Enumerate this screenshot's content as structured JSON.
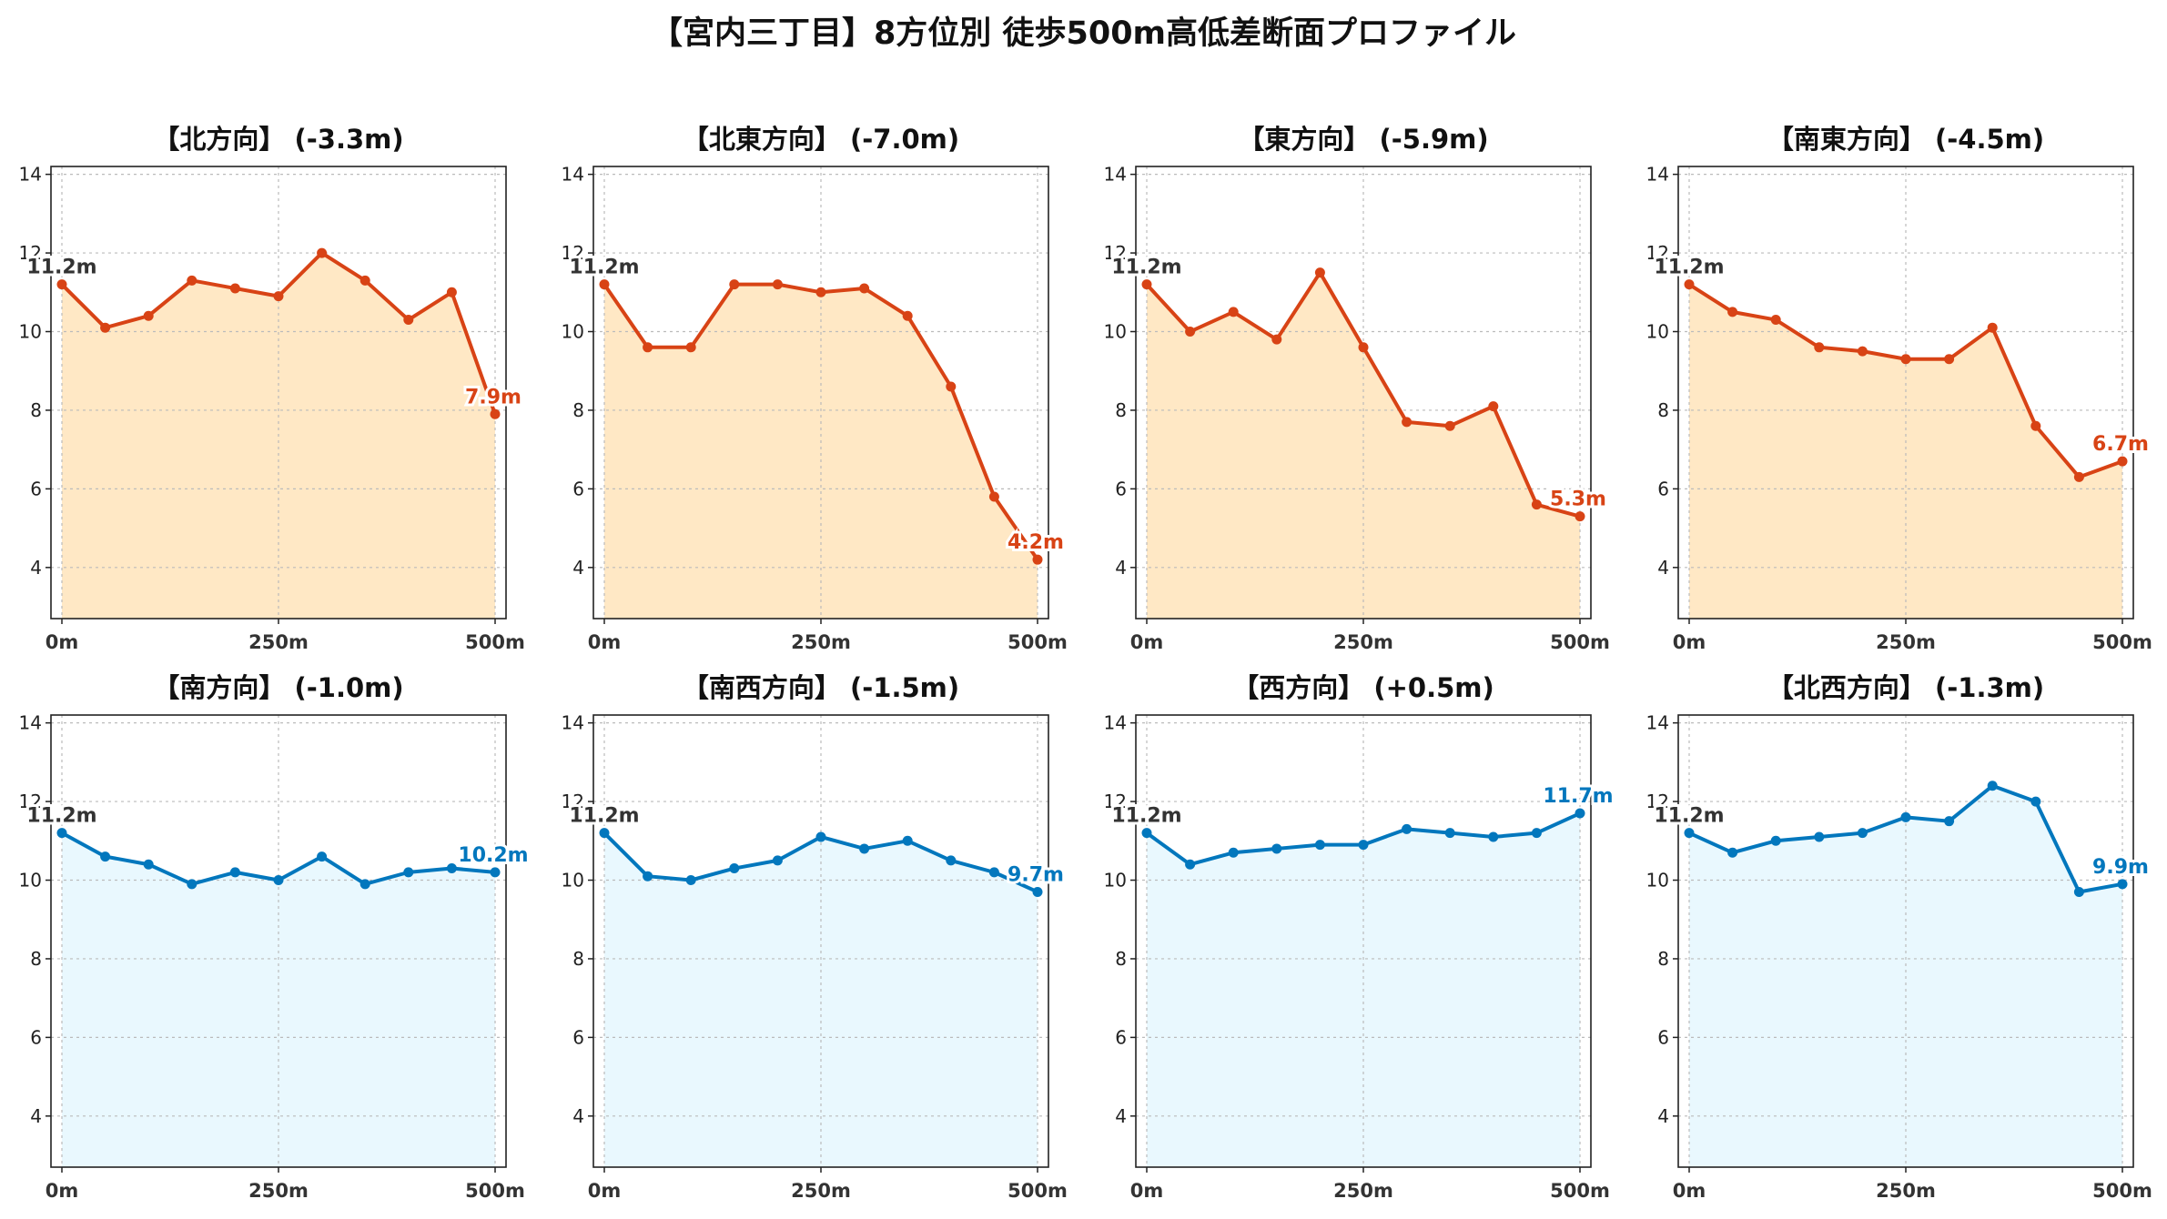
{
  "title": "【宮内三丁目】8方位別 徒歩500m高低差断面プロファイル",
  "colors": {
    "down_line": "#d84315",
    "down_fill": "#ffe0b2",
    "up_line": "#0277bd",
    "up_fill": "#e1f5fe",
    "start_label": "#333333"
  },
  "chart_data": [
    {
      "type": "line",
      "title": "【北方向】 (-3.3m)",
      "trend": "down",
      "x": [
        0,
        50,
        100,
        150,
        200,
        250,
        300,
        350,
        400,
        450,
        500
      ],
      "y": [
        11.2,
        10.1,
        10.4,
        11.3,
        11.1,
        10.9,
        12.0,
        11.3,
        10.3,
        11.0,
        7.9
      ],
      "start_label": "11.2m",
      "end_label": "7.9m",
      "x_ticks": [
        "0m",
        "250m",
        "500m"
      ],
      "y_ticks": [
        4,
        6,
        8,
        10,
        12,
        14
      ],
      "xlim": [
        0,
        500
      ],
      "ylim": [
        2.7,
        14.2
      ],
      "grid": true
    },
    {
      "type": "line",
      "title": "【北東方向】 (-7.0m)",
      "trend": "down",
      "x": [
        0,
        50,
        100,
        150,
        200,
        250,
        300,
        350,
        400,
        450,
        500
      ],
      "y": [
        11.2,
        9.6,
        9.6,
        11.2,
        11.2,
        11.0,
        11.1,
        10.4,
        8.6,
        5.8,
        4.2
      ],
      "start_label": "11.2m",
      "end_label": "4.2m",
      "x_ticks": [
        "0m",
        "250m",
        "500m"
      ],
      "y_ticks": [
        4,
        6,
        8,
        10,
        12,
        14
      ],
      "xlim": [
        0,
        500
      ],
      "ylim": [
        2.7,
        14.2
      ],
      "grid": true
    },
    {
      "type": "line",
      "title": "【東方向】 (-5.9m)",
      "trend": "down",
      "x": [
        0,
        50,
        100,
        150,
        200,
        250,
        300,
        350,
        400,
        450,
        500
      ],
      "y": [
        11.2,
        10.0,
        10.5,
        9.8,
        11.5,
        9.6,
        7.7,
        7.6,
        8.1,
        5.6,
        5.3
      ],
      "start_label": "11.2m",
      "end_label": "5.3m",
      "x_ticks": [
        "0m",
        "250m",
        "500m"
      ],
      "y_ticks": [
        4,
        6,
        8,
        10,
        12,
        14
      ],
      "xlim": [
        0,
        500
      ],
      "ylim": [
        2.7,
        14.2
      ],
      "grid": true
    },
    {
      "type": "line",
      "title": "【南東方向】 (-4.5m)",
      "trend": "down",
      "x": [
        0,
        50,
        100,
        150,
        200,
        250,
        300,
        350,
        400,
        450,
        500
      ],
      "y": [
        11.2,
        10.5,
        10.3,
        9.6,
        9.5,
        9.3,
        9.3,
        10.1,
        7.6,
        6.3,
        6.7
      ],
      "start_label": "11.2m",
      "end_label": "6.7m",
      "x_ticks": [
        "0m",
        "250m",
        "500m"
      ],
      "y_ticks": [
        4,
        6,
        8,
        10,
        12,
        14
      ],
      "xlim": [
        0,
        500
      ],
      "ylim": [
        2.7,
        14.2
      ],
      "grid": true
    },
    {
      "type": "line",
      "title": "【南方向】 (-1.0m)",
      "trend": "down_small",
      "x": [
        0,
        50,
        100,
        150,
        200,
        250,
        300,
        350,
        400,
        450,
        500
      ],
      "y": [
        11.2,
        10.6,
        10.4,
        9.9,
        10.2,
        10.0,
        10.6,
        9.9,
        10.2,
        10.3,
        10.2
      ],
      "start_label": "11.2m",
      "end_label": "10.2m",
      "x_ticks": [
        "0m",
        "250m",
        "500m"
      ],
      "y_ticks": [
        4,
        6,
        8,
        10,
        12,
        14
      ],
      "xlim": [
        0,
        500
      ],
      "ylim": [
        2.7,
        14.2
      ],
      "grid": true
    },
    {
      "type": "line",
      "title": "【南西方向】 (-1.5m)",
      "trend": "down_small",
      "x": [
        0,
        50,
        100,
        150,
        200,
        250,
        300,
        350,
        400,
        450,
        500
      ],
      "y": [
        11.2,
        10.1,
        10.0,
        10.3,
        10.5,
        11.1,
        10.8,
        11.0,
        10.5,
        10.2,
        9.7
      ],
      "start_label": "11.2m",
      "end_label": "9.7m",
      "x_ticks": [
        "0m",
        "250m",
        "500m"
      ],
      "y_ticks": [
        4,
        6,
        8,
        10,
        12,
        14
      ],
      "xlim": [
        0,
        500
      ],
      "ylim": [
        2.7,
        14.2
      ],
      "grid": true
    },
    {
      "type": "line",
      "title": "【西方向】 (+0.5m)",
      "trend": "up",
      "x": [
        0,
        50,
        100,
        150,
        200,
        250,
        300,
        350,
        400,
        450,
        500
      ],
      "y": [
        11.2,
        10.4,
        10.7,
        10.8,
        10.9,
        10.9,
        11.3,
        11.2,
        11.1,
        11.2,
        11.7
      ],
      "start_label": "11.2m",
      "end_label": "11.7m",
      "x_ticks": [
        "0m",
        "250m",
        "500m"
      ],
      "y_ticks": [
        4,
        6,
        8,
        10,
        12,
        14
      ],
      "xlim": [
        0,
        500
      ],
      "ylim": [
        2.7,
        14.2
      ],
      "grid": true
    },
    {
      "type": "line",
      "title": "【北西方向】 (-1.3m)",
      "trend": "down_small",
      "x": [
        0,
        50,
        100,
        150,
        200,
        250,
        300,
        350,
        400,
        450,
        500
      ],
      "y": [
        11.2,
        10.7,
        11.0,
        11.1,
        11.2,
        11.6,
        11.5,
        12.4,
        12.0,
        9.7,
        9.9
      ],
      "start_label": "11.2m",
      "end_label": "9.9m",
      "x_ticks": [
        "0m",
        "250m",
        "500m"
      ],
      "y_ticks": [
        4,
        6,
        8,
        10,
        12,
        14
      ],
      "xlim": [
        0,
        500
      ],
      "ylim": [
        2.7,
        14.2
      ],
      "grid": true
    }
  ]
}
